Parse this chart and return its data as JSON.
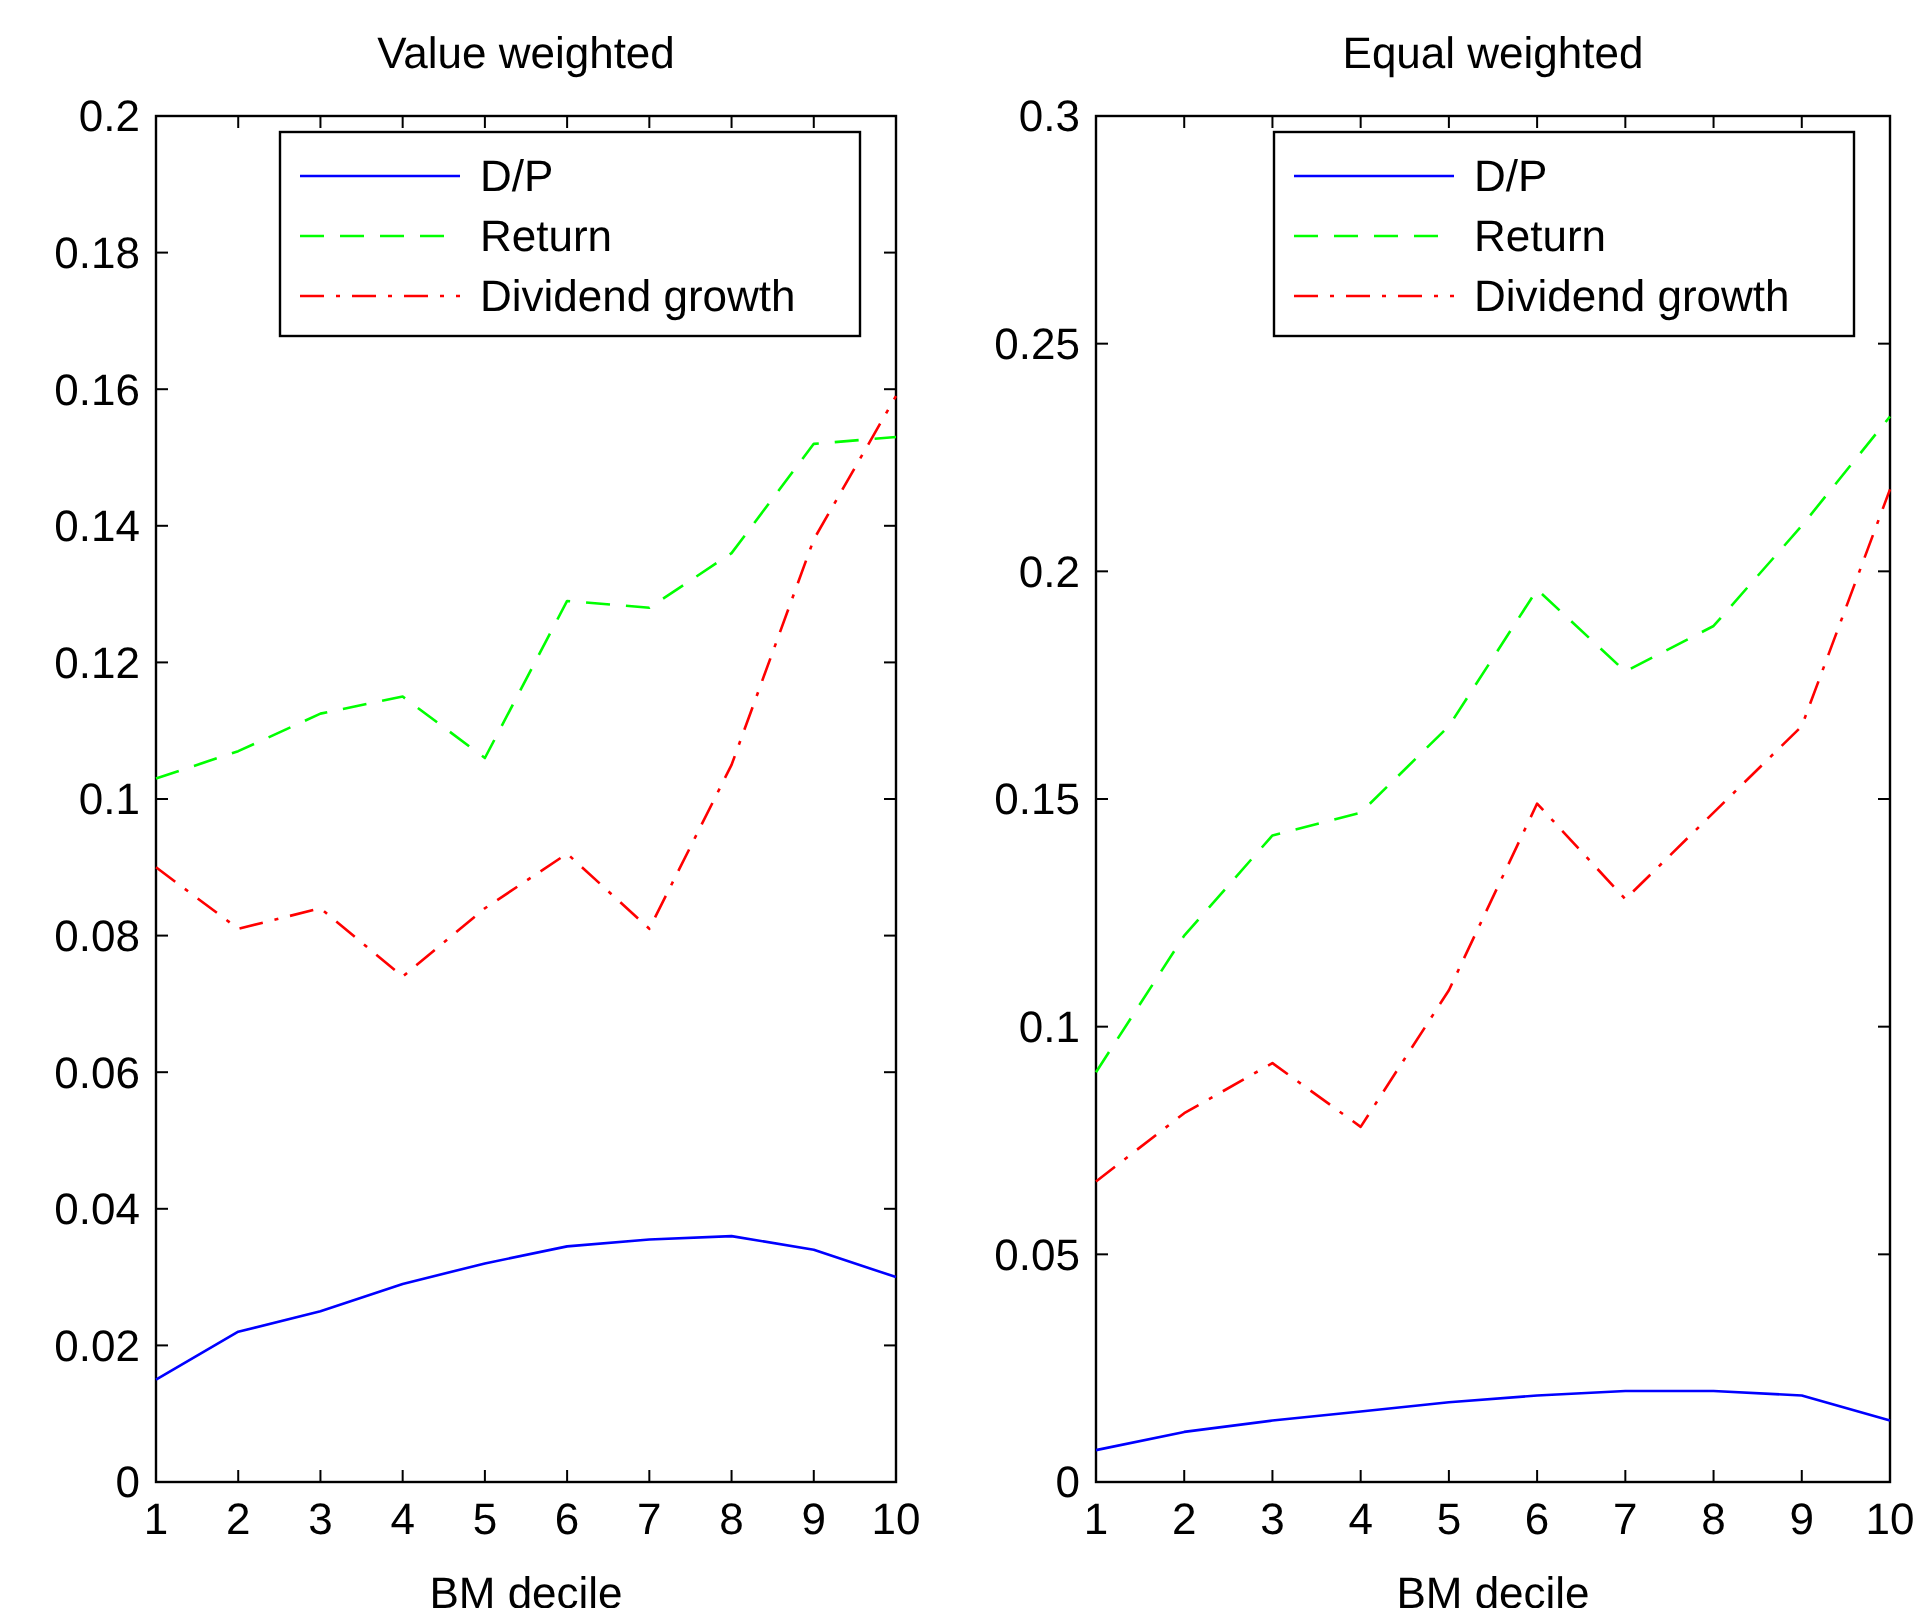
{
  "chart_data": [
    {
      "type": "line",
      "title": "Value weighted",
      "xlabel": "BM decile",
      "x": [
        1,
        2,
        3,
        4,
        5,
        6,
        7,
        8,
        9,
        10
      ],
      "xlim": [
        1,
        10
      ],
      "xticks": [
        1,
        2,
        3,
        4,
        5,
        6,
        7,
        8,
        9,
        10
      ],
      "ylim": [
        0,
        0.2
      ],
      "yticks": [
        0,
        0.02,
        0.04,
        0.06,
        0.08,
        0.1,
        0.12,
        0.14,
        0.16,
        0.18,
        0.2
      ],
      "legend": "top right",
      "grid": false,
      "marker": "none",
      "series": [
        {
          "name": "D/P",
          "color": "#0000ff",
          "line_style": "solid",
          "values": [
            0.015,
            0.022,
            0.025,
            0.029,
            0.032,
            0.0345,
            0.0355,
            0.036,
            0.034,
            0.03
          ]
        },
        {
          "name": "Return",
          "color": "#00ff00",
          "line_style": "dashed",
          "values": [
            0.103,
            0.107,
            0.1125,
            0.115,
            0.106,
            0.129,
            0.128,
            0.136,
            0.152,
            0.153
          ]
        },
        {
          "name": "Dividend growth",
          "color": "#ff0000",
          "line_style": "dashdot",
          "values": [
            0.09,
            0.081,
            0.084,
            0.074,
            0.084,
            0.092,
            0.081,
            0.105,
            0.138,
            0.159
          ]
        }
      ]
    },
    {
      "type": "line",
      "title": "Equal weighted",
      "xlabel": "BM decile",
      "x": [
        1,
        2,
        3,
        4,
        5,
        6,
        7,
        8,
        9,
        10
      ],
      "xlim": [
        1,
        10
      ],
      "xticks": [
        1,
        2,
        3,
        4,
        5,
        6,
        7,
        8,
        9,
        10
      ],
      "ylim": [
        0,
        0.3
      ],
      "yticks": [
        0,
        0.05,
        0.1,
        0.15,
        0.2,
        0.25,
        0.3
      ],
      "legend": "top right",
      "grid": false,
      "marker": "none",
      "series": [
        {
          "name": "D/P",
          "color": "#0000ff",
          "line_style": "solid",
          "values": [
            0.007,
            0.011,
            0.0135,
            0.0155,
            0.0175,
            0.019,
            0.02,
            0.02,
            0.019,
            0.0135
          ]
        },
        {
          "name": "Return",
          "color": "#00ff00",
          "line_style": "dashed",
          "values": [
            0.09,
            0.12,
            0.142,
            0.147,
            0.166,
            0.196,
            0.178,
            0.188,
            0.21,
            0.234
          ]
        },
        {
          "name": "Dividend growth",
          "color": "#ff0000",
          "line_style": "dashdot",
          "values": [
            0.066,
            0.081,
            0.092,
            0.078,
            0.108,
            0.149,
            0.128,
            0.147,
            0.166,
            0.218
          ]
        }
      ]
    }
  ]
}
